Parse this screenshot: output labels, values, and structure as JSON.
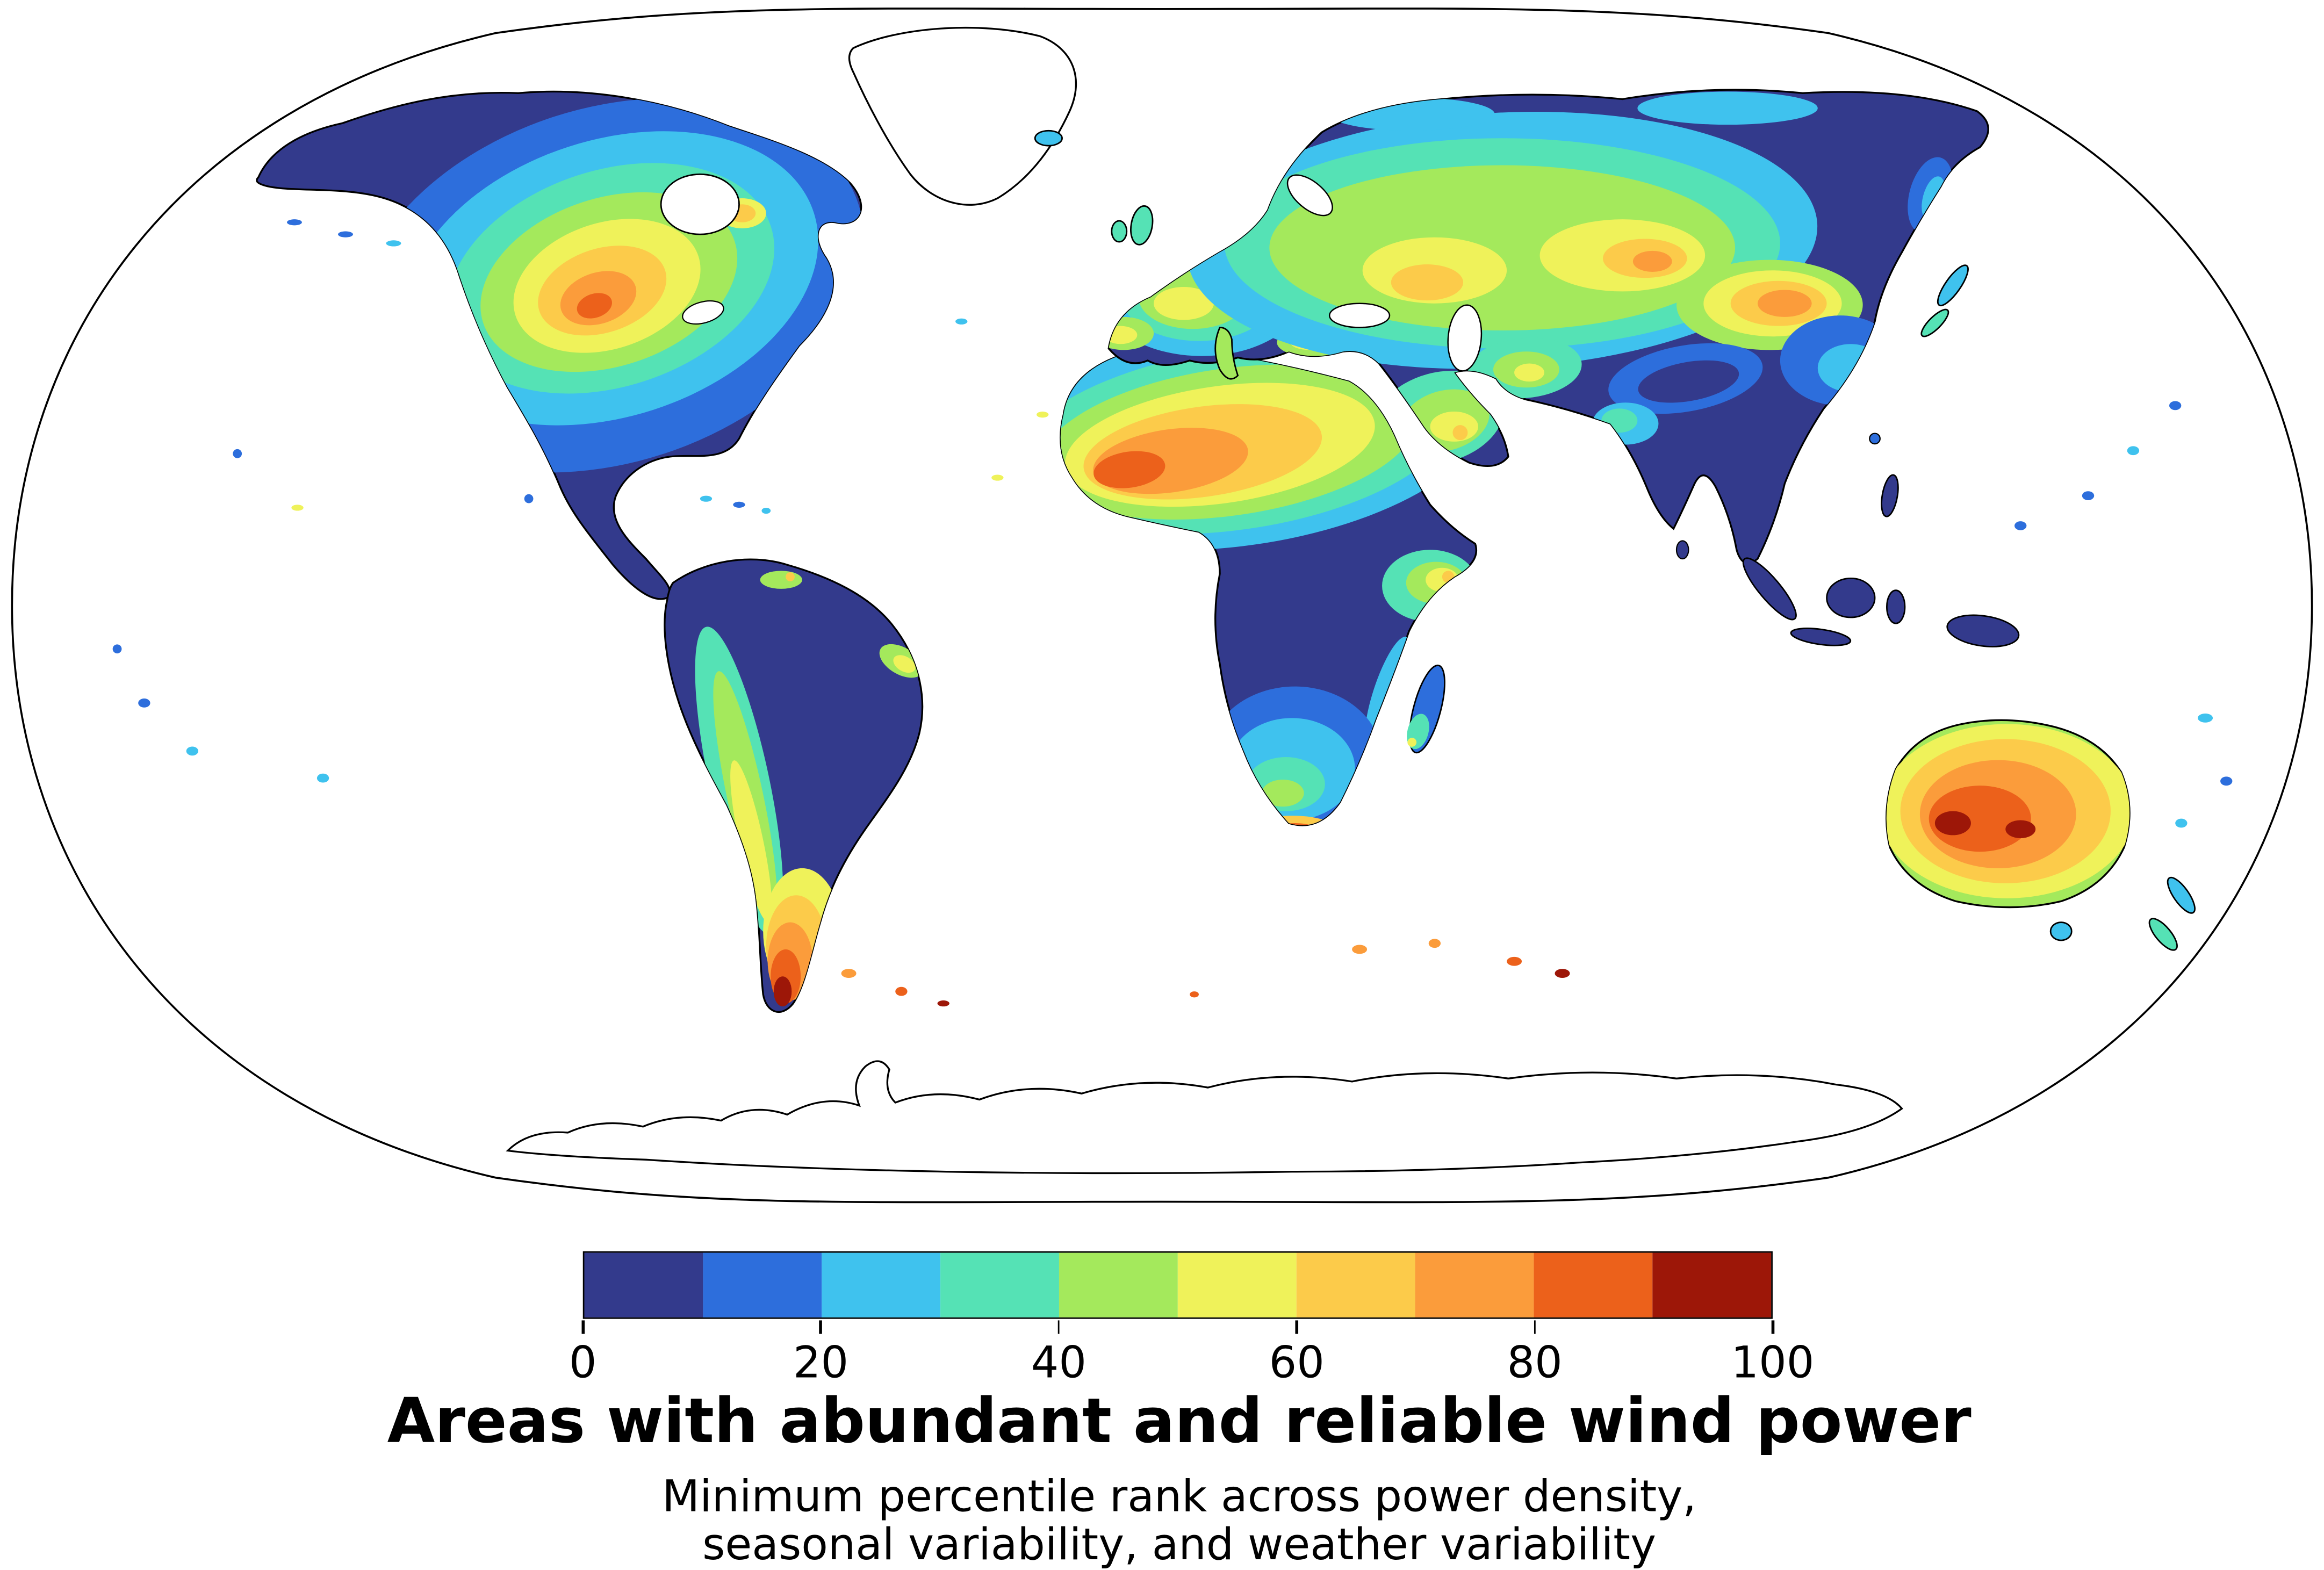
{
  "title": "Areas with abundant and reliable wind power",
  "subtitle": {
    "line1": "Minimum percentile rank across power density,",
    "line2": "seasonal variability, and weather variability"
  },
  "colorbar": {
    "min": 0,
    "max": 100,
    "ticks": [
      "0",
      "20",
      "40",
      "60",
      "80",
      "100"
    ],
    "colors": [
      "#333a8c",
      "#2d6edc",
      "#3fc2ee",
      "#55e2b5",
      "#a4e95c",
      "#eff25a",
      "#fccb4a",
      "#fb9c3b",
      "#ec611b",
      "#9d1708"
    ]
  },
  "chart_data": {
    "type": "heatmap",
    "title": "Areas with abundant and reliable wind power",
    "subtitle": "Minimum percentile rank across power density, seasonal variability, and weather variability",
    "variable": "Minimum percentile rank",
    "projection": "Robinson-style world map",
    "scale": {
      "min": 0,
      "max": 100,
      "ticks": [
        0,
        20,
        40,
        60,
        80,
        100
      ],
      "n_bins": 10,
      "bin_width": 10,
      "colors": [
        "#333a8c",
        "#2d6edc",
        "#3fc2ee",
        "#55e2b5",
        "#a4e95c",
        "#eff25a",
        "#fccb4a",
        "#fb9c3b",
        "#ec611b",
        "#9d1708"
      ]
    },
    "legend_position": "bottom",
    "high_value_regions": [
      "Central North America (Great Plains)",
      "Sahara / western North Africa",
      "Horn of Africa",
      "Arabian Peninsula",
      "Central Asia and Mongolia / NW China",
      "Interior Australia",
      "Patagonia (southern South America)",
      "Southern Ocean islands",
      "Southern African coast"
    ],
    "low_value_regions": [
      "Amazon Basin",
      "Congo Basin / central Africa",
      "India and Southeast Asia",
      "Eastern Siberia",
      "Indonesia and New Guinea",
      "Alaska and Pacific coast of North America",
      "Scandinavia"
    ],
    "no_data_regions": [
      "Oceans (white)",
      "Greenland",
      "Antarctica (outline only)"
    ]
  }
}
